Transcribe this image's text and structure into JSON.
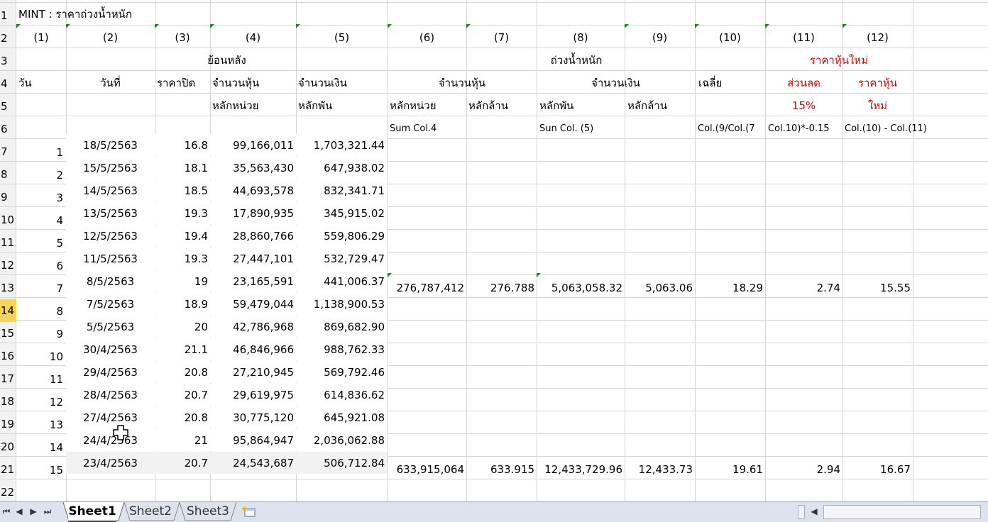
{
  "sheet": {
    "title_cell": "MINT : ราคาถ่วงน้ำหนัก",
    "row_numbers": [
      "1",
      "2",
      "3",
      "4",
      "5",
      "6",
      "7",
      "8",
      "9",
      "10",
      "11",
      "12",
      "13",
      "14",
      "15",
      "16",
      "17",
      "18",
      "19",
      "20",
      "21",
      "22"
    ],
    "col_indices": [
      "(1)",
      "(2)",
      "(3)",
      "(4)",
      "(5)",
      "(6)",
      "(7)",
      "(8)",
      "(9)",
      "(10)",
      "(11)",
      "(12)"
    ],
    "headers": {
      "backward": "ย้อนหลัง",
      "weighted": "ถ่วงน้ำหนัก",
      "new_price": "ราคาหุ้นใหม่",
      "day": "วัน",
      "date": "วันที่",
      "close_price": "ราคาปิด",
      "shares": "จำนวนหุ้น",
      "money": "จำนวนเงิน",
      "weighted_shares": "จำนวนหุ้น",
      "weighted_money": "จำนวนเงิน",
      "average": "เฉลี่ย",
      "discount": "ส่วนลด",
      "share_price": "ราคาหุ้น",
      "unit_units": "หลักหน่วย",
      "unit_thousands": "หลักพัน",
      "w_units": "หลักหน่วย",
      "w_millions": "หลักล้าน",
      "w_thousands": "หลักพัน",
      "w_millions2": "หลักล้าน",
      "discount_rate": "15%",
      "new": "ใหม่",
      "formula_sum4": "Sum Col.4",
      "formula_sum5": "Sun Col. (5)",
      "formula_avg": "Col.(9/Col.(7",
      "formula_disc": "Col.10)*-0.15",
      "formula_new": "Col.(10) - Col.(11)"
    },
    "rows": [
      {
        "day": "1",
        "date": "18/5/2563",
        "close": "16.8",
        "shares": "99,166,011",
        "money": "1,703,321.44"
      },
      {
        "day": "2",
        "date": "15/5/2563",
        "close": "18.1",
        "shares": "35,563,430",
        "money": "647,938.02"
      },
      {
        "day": "3",
        "date": "14/5/2563",
        "close": "18.5",
        "shares": "44,693,578",
        "money": "832,341.71"
      },
      {
        "day": "4",
        "date": "13/5/2563",
        "close": "19.3",
        "shares": "17,890,935",
        "money": "345,915.02"
      },
      {
        "day": "5",
        "date": "12/5/2563",
        "close": "19.4",
        "shares": "28,860,766",
        "money": "559,806.29"
      },
      {
        "day": "6",
        "date": "11/5/2563",
        "close": "19.3",
        "shares": "27,447,101",
        "money": "532,729.47"
      },
      {
        "day": "7",
        "date": "8/5/2563",
        "close": "19",
        "shares": "23,165,591",
        "money": "441,006.37"
      },
      {
        "day": "8",
        "date": "7/5/2563",
        "close": "18.9",
        "shares": "59,479,044",
        "money": "1,138,900.53"
      },
      {
        "day": "9",
        "date": "5/5/2563",
        "close": "20",
        "shares": "42,786,968",
        "money": "869,682.90"
      },
      {
        "day": "10",
        "date": "30/4/2563",
        "close": "21.1",
        "shares": "46,846,966",
        "money": "988,762.33"
      },
      {
        "day": "11",
        "date": "29/4/2563",
        "close": "20.8",
        "shares": "27,210,945",
        "money": "569,792.46"
      },
      {
        "day": "12",
        "date": "28/4/2563",
        "close": "20.7",
        "shares": "29,619,975",
        "money": "614,836.62"
      },
      {
        "day": "13",
        "date": "27/4/2563",
        "close": "20.8",
        "shares": "30,775,120",
        "money": "645,921.08"
      },
      {
        "day": "14",
        "date": "24/4/2563",
        "close": "21",
        "shares": "95,864,947",
        "money": "2,036,062.88"
      },
      {
        "day": "15",
        "date": "23/4/2563",
        "close": "20.7",
        "shares": "24,543,687",
        "money": "506,712.84"
      }
    ],
    "summary7": {
      "w_units": "276,787,412",
      "w_millions": "276.788",
      "w_thousands": "5,063,058.32",
      "w_millions2": "5,063.06",
      "avg": "18.29",
      "disc": "2.74",
      "newp": "15.55"
    },
    "summary15": {
      "w_units": "633,915,064",
      "w_millions": "633.915",
      "w_thousands": "12,433,729.96",
      "w_millions2": "12,433.73",
      "avg": "19.61",
      "disc": "2.94",
      "newp": "16.67"
    }
  },
  "tabs": [
    "Sheet1",
    "Sheet2",
    "Sheet3"
  ],
  "colors": {
    "red": "#e00000",
    "triangle": "#1e8a1e",
    "active_row": "#f7d35c"
  }
}
